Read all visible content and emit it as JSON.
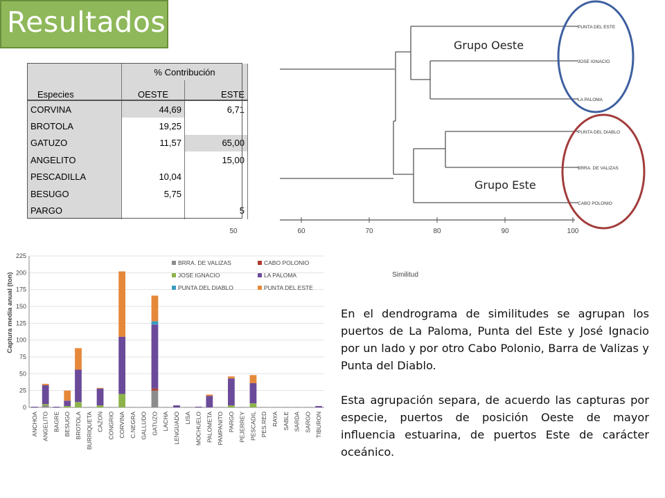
{
  "slide": {
    "title": "Resultados",
    "paragraph1": "En el dendrograma de similitudes se agrupan los puertos de La Paloma, Punta del Este y José Ignacio por un lado y por otro Cabo Polonio, Barra de Valizas y Punta del Diablo.",
    "paragraph2": "Esta agrupación  separa, de acuerdo las capturas por especie, puertos de posición Oeste de mayor  influencia estuarina, de puertos Este de carácter oceánico."
  },
  "table": {
    "group_header": "% Contribución",
    "col_species": "Especies",
    "col_oeste": "OESTE",
    "col_este": "ESTE",
    "rows": [
      {
        "species": "CORVINA",
        "oeste": "44,69",
        "este": "6,71"
      },
      {
        "species": "BROTOLA",
        "oeste": "19,25",
        "este": ""
      },
      {
        "species": "GATUZO",
        "oeste": "11,57",
        "este": "65,00"
      },
      {
        "species": "ANGELITO",
        "oeste": "",
        "este": "15,00"
      },
      {
        "species": "PESCADILLA",
        "oeste": "10,04",
        "este": ""
      },
      {
        "species": "BESUGO",
        "oeste": "5,75",
        "este": ""
      },
      {
        "species": "PARGO",
        "oeste": "",
        "este": "5"
      }
    ]
  },
  "dendrogram": {
    "group_west": "Grupo Oeste",
    "group_east": "Grupo Este",
    "leaves": [
      "PUNTA DEL ESTE",
      "JOSE IGNACIO",
      "LA PALOMA",
      "PUNTA DEL DIABLO",
      "BRRA. DE VALIZAS",
      "CABO POLONIO"
    ],
    "axis_title": "Similitud",
    "ticks": [
      "50",
      "60",
      "70",
      "80",
      "90",
      "100"
    ],
    "colors": {
      "west_ellipse": "#3d5fa0",
      "east_ellipse": "#a23c3c"
    }
  },
  "chart_data": {
    "type": "bar",
    "stacked": true,
    "ylabel": "Captura media anual (ton)",
    "ylim": [
      0,
      225
    ],
    "yticks": [
      0,
      25,
      50,
      75,
      100,
      125,
      150,
      175,
      200,
      225
    ],
    "legend_position": "top-right",
    "categories": [
      "ANCHOA",
      "ANGELITO",
      "BAGRE",
      "BESUGO",
      "BROTOLA",
      "BURRIQUETA",
      "CAZON",
      "CONGRIO",
      "CORVINA",
      "C.NEGRA",
      "GALLUDO",
      "GATUZO",
      "LACHA",
      "LENGUADO",
      "LISA",
      "MOCHUELO",
      "PALOMETA",
      "PAMPANITO",
      "PARGO",
      "PEJERREY",
      "PESCADIL",
      "PES.RED",
      "RAYA",
      "SABLE",
      "SARDA",
      "SARGO",
      "TIBURON"
    ],
    "series": [
      {
        "name": "BRRA. DE VALIZAS",
        "color": "#8c8c8c",
        "values": [
          0,
          3,
          0,
          0,
          0,
          0,
          0,
          0,
          0,
          0,
          0,
          25,
          0,
          0,
          0,
          0,
          0,
          0,
          0,
          0,
          0,
          0,
          0,
          0,
          0,
          0,
          0
        ]
      },
      {
        "name": "CABO POLONIO",
        "color": "#b23a2e",
        "values": [
          0,
          0,
          0,
          0,
          0,
          0,
          0,
          0,
          0,
          0,
          0,
          3,
          0,
          0,
          0,
          0,
          0,
          0,
          0,
          0,
          0,
          0,
          0,
          0,
          0,
          0,
          0
        ]
      },
      {
        "name": "JOSE IGNACIO",
        "color": "#8db34a",
        "values": [
          0,
          2,
          0,
          2,
          8,
          0,
          3,
          0,
          20,
          0,
          0,
          0,
          0,
          0,
          0,
          0,
          0,
          0,
          3,
          0,
          6,
          0,
          0,
          0,
          0,
          0,
          0
        ]
      },
      {
        "name": "LA PALOMA",
        "color": "#6b4a9a",
        "values": [
          1,
          28,
          1,
          8,
          48,
          0,
          25,
          0,
          85,
          0,
          0,
          95,
          0,
          3,
          0,
          1,
          17,
          0,
          40,
          0,
          30,
          0,
          0,
          0,
          0,
          0,
          2
        ]
      },
      {
        "name": "PUNTA DEL DIABLO",
        "color": "#3c9cc2",
        "values": [
          0,
          0,
          0,
          0,
          0,
          0,
          0,
          0,
          0,
          0,
          0,
          5,
          0,
          0,
          0,
          0,
          0,
          0,
          0,
          0,
          0,
          0,
          0,
          0,
          0,
          0,
          0
        ]
      },
      {
        "name": "PUNTA DEL ESTE",
        "color": "#e6883a",
        "values": [
          0,
          2,
          0,
          15,
          32,
          0,
          1,
          0,
          97,
          0,
          0,
          38,
          0,
          0,
          0,
          0,
          2,
          0,
          3,
          0,
          12,
          0,
          0,
          0,
          0,
          0,
          0
        ]
      }
    ]
  }
}
